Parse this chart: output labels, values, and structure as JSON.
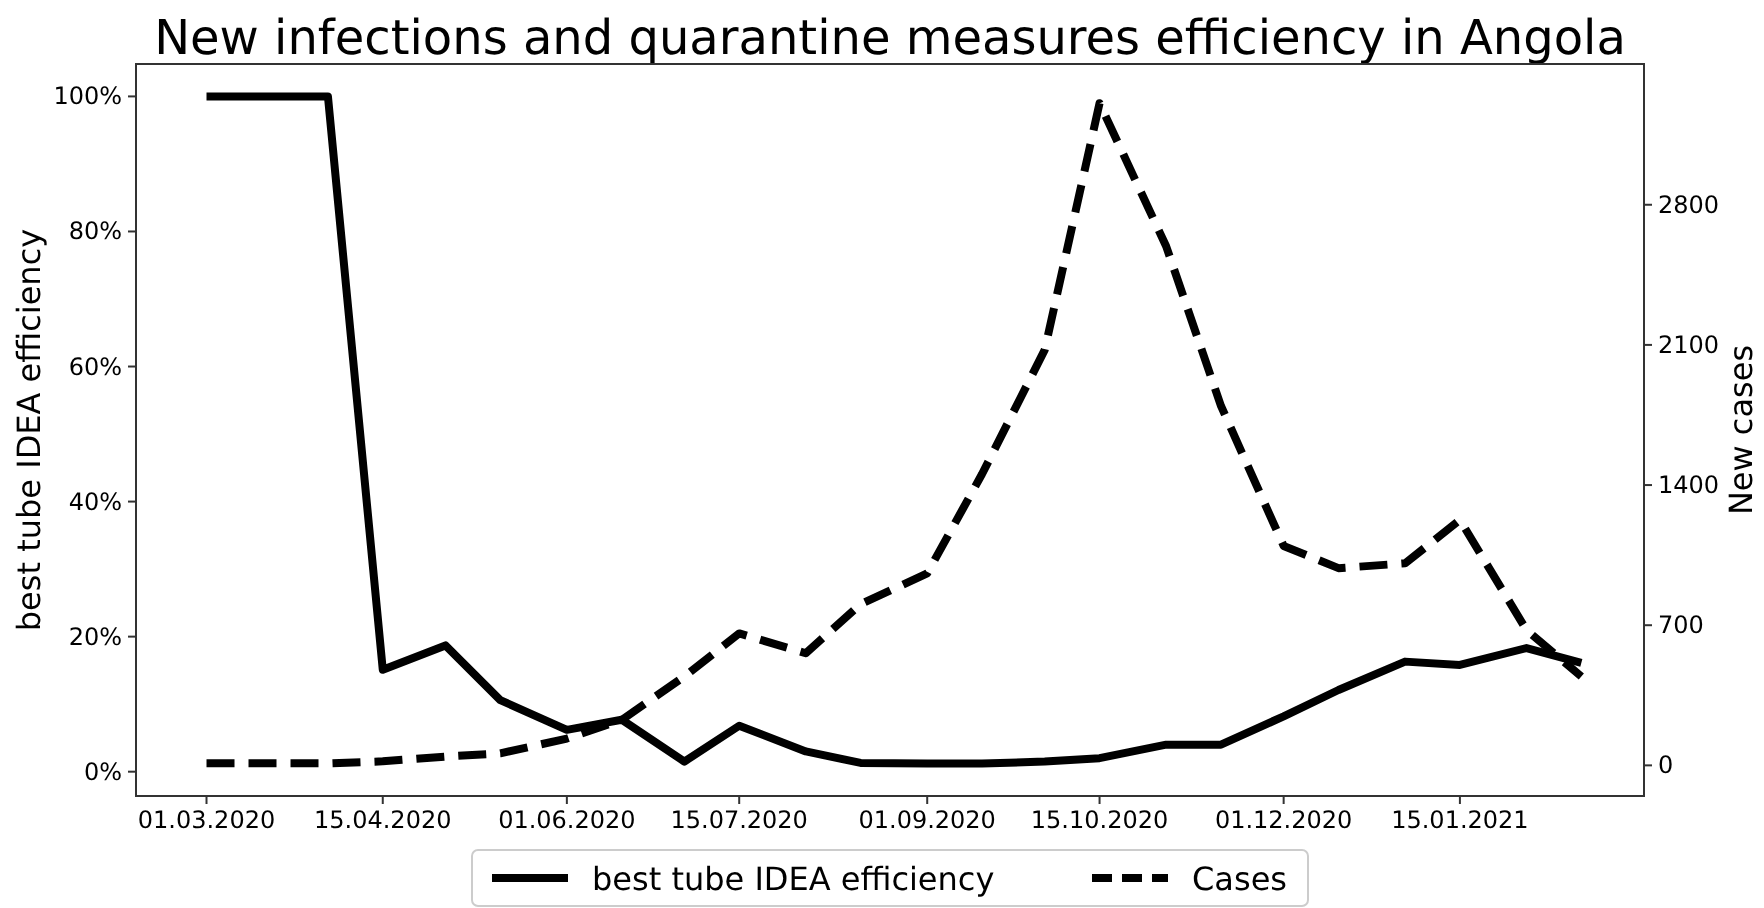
{
  "chart_data": {
    "type": "line",
    "title": "New infections and quarantine measures efficiency in Angola",
    "ylabel": "best tube IDEA efficiency",
    "y2label": "New cases",
    "x": [
      "2020-03-01",
      "2020-03-15",
      "2020-04-01",
      "2020-04-15",
      "2020-05-01",
      "2020-05-15",
      "2020-06-01",
      "2020-06-15",
      "2020-07-01",
      "2020-07-15",
      "2020-08-01",
      "2020-08-15",
      "2020-09-01",
      "2020-09-15",
      "2020-10-01",
      "2020-10-15",
      "2020-11-01",
      "2020-11-15",
      "2020-12-01",
      "2020-12-15",
      "2021-01-01",
      "2021-01-15",
      "2021-02-01",
      "2021-02-15"
    ],
    "series": [
      {
        "name": "best tube IDEA efficiency",
        "color": "#000000",
        "line_style": "solid",
        "values": [
          100,
          100,
          100,
          15.1,
          18.7,
          10.6,
          6.2,
          7.7,
          1.5,
          6.8,
          3.0,
          1.3,
          1.2,
          1.2,
          1.5,
          2.0,
          4.0,
          4.0,
          8.2,
          12.1,
          16.3,
          15.8,
          18.3,
          16.1
        ]
      },
      {
        "name": "Cases",
        "color": "#000000",
        "line_style": "dashed",
        "axis": "y2",
        "values": [
          10,
          10,
          10,
          20,
          44,
          60,
          134,
          227,
          444,
          659,
          560,
          805,
          959,
          1455,
          2075,
          3307,
          2593,
          1795,
          1096,
          985,
          1009,
          1226,
          676,
          444
        ]
      }
    ],
    "xlim": [
      "2020-02-12",
      "2021-03-03"
    ],
    "xticks": [
      {
        "value": "2020-03-01",
        "label": "01.03.2020"
      },
      {
        "value": "2020-04-15",
        "label": "15.04.2020"
      },
      {
        "value": "2020-06-01",
        "label": "01.06.2020"
      },
      {
        "value": "2020-07-15",
        "label": "15.07.2020"
      },
      {
        "value": "2020-09-01",
        "label": "01.09.2020"
      },
      {
        "value": "2020-10-15",
        "label": "15.10.2020"
      },
      {
        "value": "2020-12-01",
        "label": "01.12.2020"
      },
      {
        "value": "2021-01-15",
        "label": "15.01.2021"
      }
    ],
    "ylim": [
      -3.6,
      104.8
    ],
    "yticks": [
      {
        "value": 0,
        "label": "0%"
      },
      {
        "value": 20,
        "label": "20%"
      },
      {
        "value": 40,
        "label": "40%"
      },
      {
        "value": 60,
        "label": "60%"
      },
      {
        "value": 80,
        "label": "80%"
      },
      {
        "value": 100,
        "label": "100%"
      }
    ],
    "y2lim": [
      -153,
      3503
    ],
    "y2ticks": [
      0,
      700,
      1400,
      2100,
      2800
    ],
    "grid": false,
    "legend": "bottom",
    "marker": "none"
  }
}
